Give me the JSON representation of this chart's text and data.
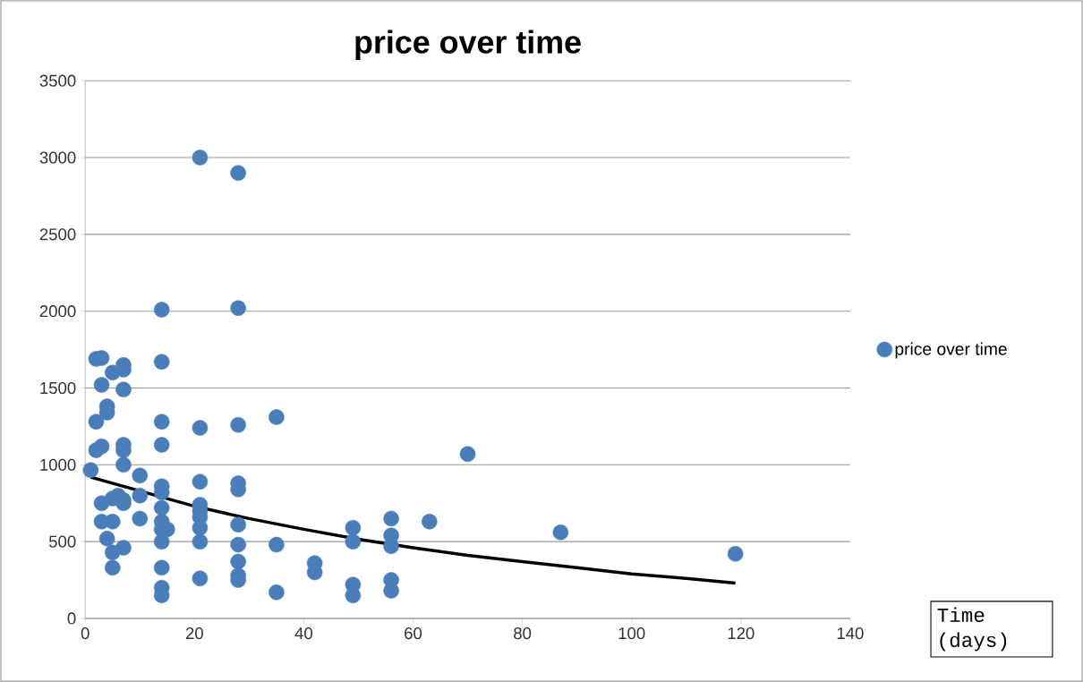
{
  "chart_data": {
    "type": "scatter",
    "title": "price over time",
    "xlabel": "Time (days)",
    "xlim": [
      0,
      140
    ],
    "xticks": [
      0,
      20,
      40,
      60,
      80,
      100,
      120,
      140
    ],
    "ylim": [
      0,
      3500
    ],
    "yticks": [
      0,
      500,
      1000,
      1500,
      2000,
      2500,
      3000,
      3500
    ],
    "grid": "y",
    "legend": "right",
    "series": [
      {
        "name": "price over time",
        "color": "#4a7ebb",
        "marker": "circle",
        "x": [
          1,
          2,
          2,
          2,
          3,
          3,
          3,
          3,
          3,
          4,
          4,
          4,
          5,
          5,
          5,
          5,
          5,
          6,
          7,
          7,
          7,
          7,
          7,
          7,
          7,
          7,
          7,
          10,
          10,
          10,
          14,
          14,
          14,
          14,
          14,
          14,
          14,
          14,
          14,
          14,
          14,
          14,
          14,
          15,
          21,
          21,
          21,
          21,
          21,
          21,
          21,
          21,
          21,
          28,
          28,
          28,
          28,
          28,
          28,
          28,
          28,
          28,
          28,
          35,
          35,
          35,
          42,
          42,
          49,
          49,
          49,
          49,
          56,
          56,
          56,
          56,
          56,
          63,
          70,
          87,
          119
        ],
        "values": [
          965,
          1690,
          1280,
          1095,
          1695,
          1520,
          1120,
          750,
          630,
          1380,
          1340,
          520,
          1600,
          780,
          630,
          430,
          330,
          800,
          1650,
          1620,
          1490,
          1130,
          1095,
          1000,
          770,
          750,
          460,
          930,
          800,
          650,
          2010,
          1670,
          1280,
          1130,
          860,
          820,
          720,
          630,
          580,
          500,
          330,
          200,
          150,
          580,
          3000,
          1240,
          890,
          740,
          700,
          660,
          590,
          500,
          260,
          2900,
          2020,
          1260,
          880,
          840,
          610,
          480,
          370,
          280,
          250,
          1310,
          480,
          170,
          360,
          300,
          590,
          500,
          220,
          150,
          650,
          540,
          470,
          250,
          180,
          630,
          1070,
          560,
          420
        ]
      },
      {
        "type": "line",
        "color": "#000000",
        "line_style": "solid",
        "marker": "none",
        "x": [
          1,
          20,
          30,
          40,
          50,
          60,
          70,
          80,
          90,
          100,
          110,
          119
        ],
        "values": [
          920,
          730,
          650,
          580,
          515,
          460,
          410,
          370,
          330,
          290,
          260,
          230
        ]
      }
    ]
  }
}
